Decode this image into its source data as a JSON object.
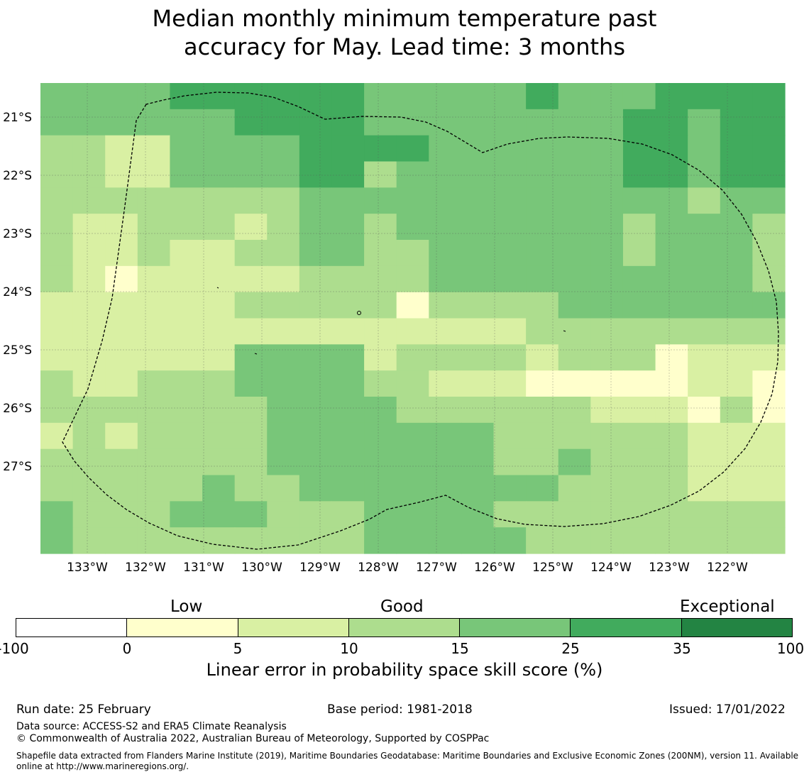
{
  "title_line1": "Median monthly minimum temperature past",
  "title_line2": "accuracy for May. Lead time: 3 months",
  "map": {
    "lon_labels": [
      "133°W",
      "132°W",
      "131°W",
      "130°W",
      "129°W",
      "128°W",
      "127°W",
      "126°W",
      "125°W",
      "124°W",
      "123°W",
      "122°W"
    ],
    "lon_values": [
      -133,
      -132,
      -131,
      -130,
      -129,
      -128,
      -127,
      -126,
      -125,
      -124,
      -123,
      -122
    ],
    "lat_labels": [
      "21°S",
      "22°S",
      "23°S",
      "24°S",
      "25°S",
      "26°S",
      "27°S"
    ],
    "lat_values": [
      -21,
      -22,
      -23,
      -24,
      -25,
      -26,
      -27
    ],
    "grid": true,
    "skill_grid_categories": [
      [
        4,
        4,
        4,
        4,
        5,
        5,
        5,
        5,
        5,
        5,
        4,
        4,
        4,
        4,
        4,
        5,
        4,
        4,
        4,
        5,
        5,
        5,
        5
      ],
      [
        4,
        4,
        4,
        4,
        4,
        4,
        5,
        5,
        5,
        5,
        4,
        4,
        4,
        4,
        4,
        4,
        4,
        4,
        5,
        5,
        4,
        5,
        5
      ],
      [
        3,
        3,
        2,
        2,
        4,
        4,
        4,
        4,
        5,
        5,
        5,
        5,
        4,
        4,
        4,
        4,
        4,
        4,
        5,
        5,
        4,
        5,
        5
      ],
      [
        3,
        3,
        2,
        2,
        4,
        4,
        4,
        4,
        5,
        5,
        3,
        4,
        4,
        4,
        4,
        4,
        4,
        4,
        5,
        5,
        4,
        5,
        5
      ],
      [
        3,
        3,
        3,
        3,
        3,
        3,
        3,
        3,
        4,
        4,
        4,
        4,
        4,
        4,
        4,
        4,
        4,
        4,
        4,
        4,
        3,
        4,
        4
      ],
      [
        3,
        2,
        2,
        3,
        3,
        3,
        2,
        3,
        4,
        4,
        3,
        4,
        4,
        4,
        4,
        4,
        4,
        4,
        3,
        4,
        4,
        4,
        3
      ],
      [
        3,
        2,
        2,
        3,
        2,
        2,
        3,
        3,
        4,
        4,
        3,
        3,
        4,
        4,
        4,
        4,
        4,
        4,
        3,
        4,
        4,
        4,
        3
      ],
      [
        3,
        2,
        1,
        2,
        2,
        2,
        2,
        2,
        3,
        3,
        3,
        3,
        4,
        4,
        4,
        4,
        4,
        4,
        4,
        4,
        4,
        4,
        3
      ],
      [
        2,
        2,
        2,
        2,
        2,
        2,
        3,
        3,
        3,
        3,
        3,
        1,
        3,
        3,
        3,
        3,
        4,
        4,
        4,
        4,
        4,
        4,
        4
      ],
      [
        2,
        2,
        2,
        2,
        2,
        2,
        2,
        2,
        2,
        2,
        2,
        2,
        2,
        2,
        2,
        3,
        3,
        3,
        3,
        3,
        3,
        3,
        3
      ],
      [
        2,
        2,
        2,
        2,
        2,
        2,
        4,
        4,
        4,
        4,
        2,
        3,
        3,
        3,
        3,
        2,
        3,
        3,
        3,
        1,
        2,
        2,
        2
      ],
      [
        3,
        2,
        2,
        3,
        3,
        3,
        4,
        4,
        4,
        4,
        3,
        3,
        2,
        2,
        2,
        1,
        1,
        1,
        1,
        1,
        2,
        2,
        1
      ],
      [
        3,
        3,
        3,
        3,
        3,
        3,
        3,
        4,
        4,
        4,
        4,
        3,
        3,
        3,
        3,
        3,
        3,
        2,
        2,
        2,
        1,
        3,
        1
      ],
      [
        2,
        3,
        2,
        3,
        3,
        3,
        3,
        4,
        4,
        4,
        4,
        4,
        4,
        4,
        3,
        3,
        3,
        3,
        3,
        3,
        2,
        2,
        2
      ],
      [
        3,
        3,
        3,
        3,
        3,
        3,
        3,
        4,
        4,
        4,
        4,
        4,
        4,
        4,
        3,
        3,
        4,
        3,
        3,
        3,
        2,
        2,
        2
      ],
      [
        3,
        3,
        3,
        3,
        3,
        4,
        3,
        3,
        4,
        4,
        4,
        4,
        4,
        4,
        4,
        4,
        3,
        3,
        3,
        3,
        2,
        2,
        2
      ],
      [
        4,
        3,
        3,
        3,
        4,
        4,
        4,
        3,
        3,
        3,
        4,
        4,
        4,
        4,
        3,
        3,
        3,
        3,
        3,
        3,
        3,
        3,
        3
      ],
      [
        4,
        3,
        3,
        3,
        3,
        3,
        3,
        3,
        3,
        3,
        4,
        4,
        4,
        4,
        4,
        3,
        3,
        3,
        3,
        3,
        3,
        3,
        3
      ]
    ]
  },
  "colorbar": {
    "category_labels": [
      "Low",
      "Good",
      "Exceptional"
    ],
    "colors": [
      "#ffffff",
      "#ffffcc",
      "#d9f0a3",
      "#addd8e",
      "#78c679",
      "#41ab5d",
      "#238443"
    ],
    "ticks": [
      "-100",
      "0",
      "5",
      "10",
      "15",
      "25",
      "35",
      "100"
    ],
    "xlabel": "Linear error in probability space skill score (%)"
  },
  "footer": {
    "run_date": "Run date: 25 February",
    "base_period": "Base period: 1981-2018",
    "issued": "Issued: 17/01/2022",
    "data_source": "Data source: ACCESS-S2 and ERA5 Climate Reanalysis",
    "copyright": "© Commonwealth of Australia 2022, Australian Bureau of Meteorology, Supported by COSPPac",
    "shapefile": "Shapefile data extracted from Flanders Marine Institute (2019), Maritime Boundaries Geodatabase: Maritime Boundaries and Exclusive Economic Zones (200NM), version 11. Available online at http://www.marineregions.org/."
  }
}
